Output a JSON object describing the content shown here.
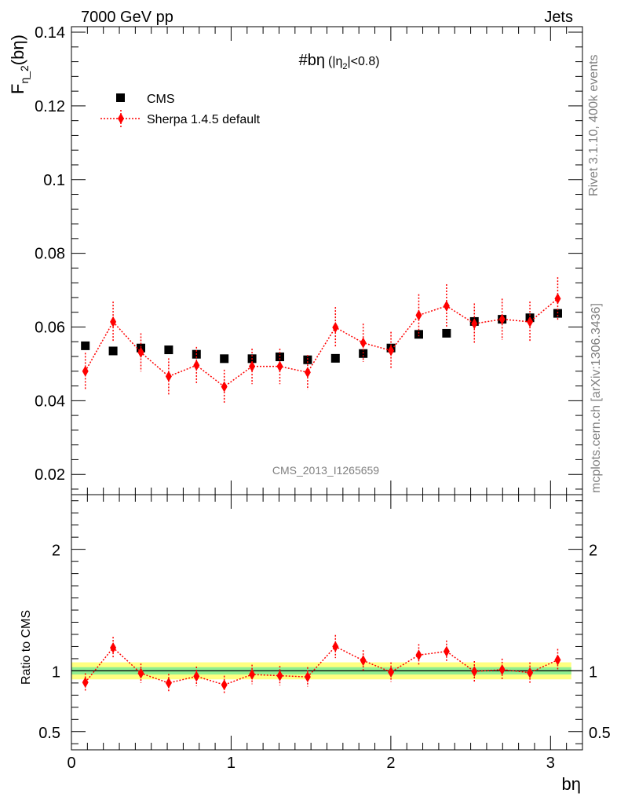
{
  "header": {
    "left": "7000 GeV pp",
    "right": "Jets"
  },
  "side_labels": {
    "rivet": "Rivet 3.1.10,  400k events",
    "mcplots": "mcplots.cern.ch [arXiv:1306.3436]"
  },
  "chart_data": [
    {
      "type": "scatter",
      "title": "#bη (|η₂|<0.8)",
      "title_main": "#bη",
      "title_sub_a": "(|η",
      "title_sub_b": "2",
      "title_sub_c": "|<0.8)",
      "ylabel": "Fη_2(bη)",
      "ylabel_main": "F",
      "ylabel_sub": "η_2",
      "ylabel_paren": "(bη)",
      "watermark": "CMS_2013_I1265659",
      "xlim": [
        0,
        3.2
      ],
      "ylim": [
        0.0145,
        0.1415
      ],
      "yticks": [
        0.02,
        0.04,
        0.06,
        0.08,
        0.1,
        0.12,
        0.14
      ],
      "ytick_labels": [
        "0.02",
        "0.04",
        "0.06",
        "0.08",
        "0.1",
        "0.12",
        "0.14"
      ],
      "legend_position": "top-left",
      "series": [
        {
          "name": "CMS",
          "color": "#000000",
          "marker": "square",
          "x": [
            0.087,
            0.261,
            0.435,
            0.609,
            0.783,
            0.957,
            1.131,
            1.305,
            1.479,
            1.653,
            1.827,
            2.001,
            2.175,
            2.349,
            2.523,
            2.697,
            2.871,
            3.045
          ],
          "y": [
            0.0549,
            0.0535,
            0.0543,
            0.0538,
            0.0526,
            0.0514,
            0.0514,
            0.0519,
            0.0511,
            0.0515,
            0.0528,
            0.0543,
            0.058,
            0.0583,
            0.0615,
            0.0621,
            0.0625,
            0.0637
          ]
        },
        {
          "name": "Sherpa 1.4.5 default",
          "color": "#ff0000",
          "marker": "diamond",
          "x": [
            0.087,
            0.261,
            0.435,
            0.609,
            0.783,
            0.957,
            1.131,
            1.305,
            1.479,
            1.653,
            1.827,
            2.001,
            2.175,
            2.349,
            2.523,
            2.697,
            2.871,
            3.045
          ],
          "y": [
            0.048,
            0.0614,
            0.0531,
            0.0466,
            0.0496,
            0.0438,
            0.0493,
            0.0493,
            0.0477,
            0.0599,
            0.0557,
            0.0536,
            0.0632,
            0.0657,
            0.0609,
            0.0621,
            0.0614,
            0.0677
          ],
          "err": [
            0.005,
            0.0055,
            0.0052,
            0.0049,
            0.005,
            0.0046,
            0.0048,
            0.0048,
            0.0047,
            0.0055,
            0.0052,
            0.0051,
            0.0057,
            0.0059,
            0.0055,
            0.0056,
            0.0055,
            0.0058
          ]
        }
      ]
    },
    {
      "type": "scatter",
      "ylabel": "Ratio to CMS",
      "xlabel": "bη",
      "xlim": [
        0,
        3.2
      ],
      "ylim": [
        0.35,
        2.45
      ],
      "xticks": [
        0,
        1,
        2,
        3
      ],
      "xtick_labels": [
        "0",
        "1",
        "2",
        "3"
      ],
      "yticks": [
        0.5,
        1,
        2
      ],
      "ytick_labels": [
        "0.5",
        "1",
        "2"
      ],
      "band_inner": {
        "color": "#90ee90",
        "half_width": 0.03
      },
      "band_outer": {
        "color": "#ffff80",
        "half_width": 0.07
      },
      "series": [
        {
          "name": "Sherpa 1.4.5 default",
          "color": "#ff0000",
          "x": [
            0.087,
            0.261,
            0.435,
            0.609,
            0.783,
            0.957,
            1.131,
            1.305,
            1.479,
            1.653,
            1.827,
            2.001,
            2.175,
            2.349,
            2.523,
            2.697,
            2.871,
            3.045
          ],
          "y": [
            0.905,
            1.19,
            0.98,
            0.9,
            0.955,
            0.885,
            0.97,
            0.96,
            0.95,
            1.2,
            1.085,
            0.99,
            1.13,
            1.16,
            0.995,
            1.01,
            0.985,
            1.09
          ],
          "err": [
            0.075,
            0.09,
            0.08,
            0.075,
            0.08,
            0.075,
            0.08,
            0.08,
            0.08,
            0.095,
            0.085,
            0.08,
            0.09,
            0.09,
            0.085,
            0.09,
            0.085,
            0.09
          ]
        }
      ]
    }
  ]
}
